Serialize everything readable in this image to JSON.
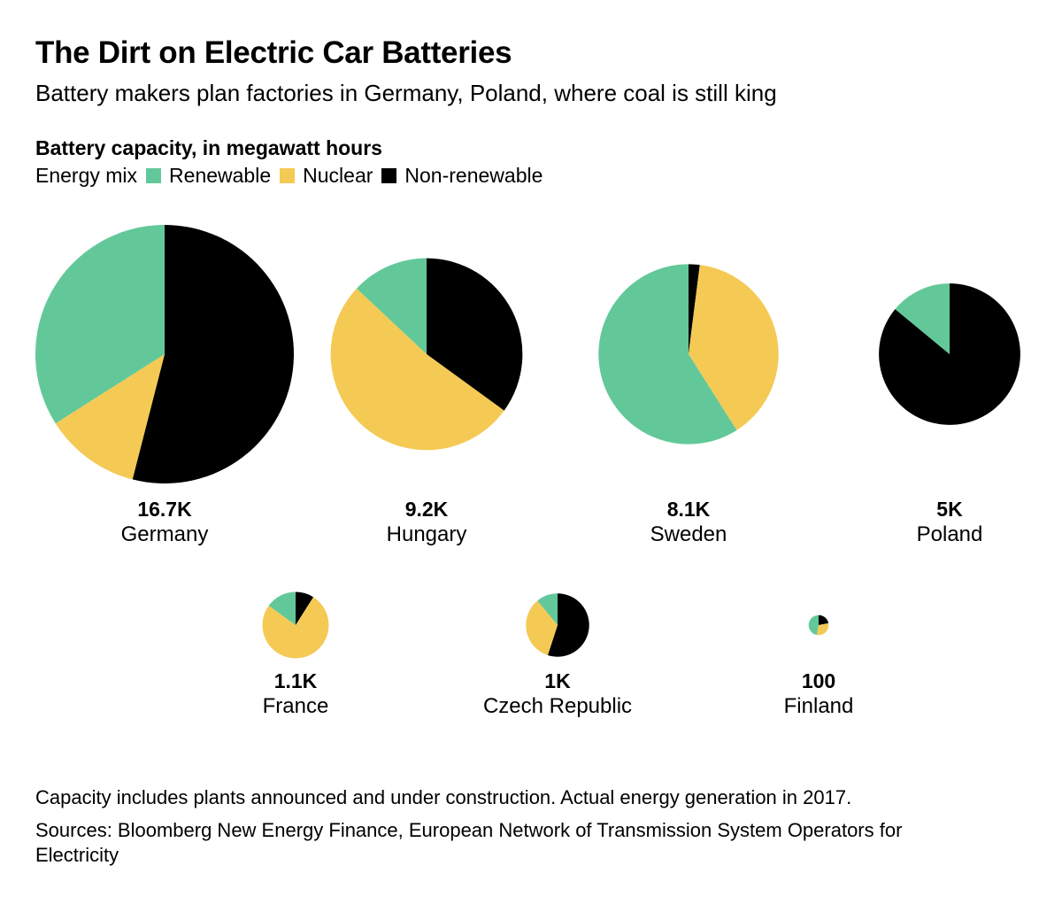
{
  "title": "The Dirt on Electric Car Batteries",
  "subtitle": "Battery makers plan factories in Germany, Poland, where coal is still king",
  "measure_label": "Battery capacity, in megawatt hours",
  "legend": {
    "label": "Energy mix",
    "items": [
      {
        "name": "Renewable",
        "color": "#63c899"
      },
      {
        "name": "Nuclear",
        "color": "#f4ca55"
      },
      {
        "name": "Non-renewable",
        "color": "#000000"
      }
    ]
  },
  "chart_data": {
    "type": "pie",
    "title": "The Dirt on Electric Car Batteries",
    "subtitle": "Battery makers plan factories in Germany, Poland, where coal is still king",
    "size_measure": "Battery capacity, in megawatt hours",
    "slice_order": [
      "Non-renewable",
      "Nuclear",
      "Renewable"
    ],
    "colors": {
      "Renewable": "#63c899",
      "Nuclear": "#f4ca55",
      "Non-renewable": "#000000"
    },
    "pies": [
      {
        "country": "Germany",
        "capacity_label": "16.7K",
        "capacity_mwh": 16700,
        "shares": {
          "Non-renewable": 54,
          "Nuclear": 12,
          "Renewable": 34
        }
      },
      {
        "country": "Hungary",
        "capacity_label": "9.2K",
        "capacity_mwh": 9200,
        "shares": {
          "Non-renewable": 35,
          "Nuclear": 52,
          "Renewable": 13
        }
      },
      {
        "country": "Sweden",
        "capacity_label": "8.1K",
        "capacity_mwh": 8100,
        "shares": {
          "Non-renewable": 2,
          "Nuclear": 39,
          "Renewable": 59
        }
      },
      {
        "country": "Poland",
        "capacity_label": "5K",
        "capacity_mwh": 5000,
        "shares": {
          "Non-renewable": 86,
          "Nuclear": 0,
          "Renewable": 14
        }
      },
      {
        "country": "France",
        "capacity_label": "1.1K",
        "capacity_mwh": 1100,
        "shares": {
          "Non-renewable": 9,
          "Nuclear": 76,
          "Renewable": 15
        }
      },
      {
        "country": "Czech Republic",
        "capacity_label": "1K",
        "capacity_mwh": 1000,
        "shares": {
          "Non-renewable": 55,
          "Nuclear": 34,
          "Renewable": 11
        }
      },
      {
        "country": "Finland",
        "capacity_label": "100",
        "capacity_mwh": 100,
        "shares": {
          "Non-renewable": 22,
          "Nuclear": 31,
          "Renewable": 47
        }
      }
    ]
  },
  "footnote": "Capacity includes plants announced and under construction. Actual energy generation in 2017.",
  "sources": "Sources: Bloomberg New Energy Finance, European Network of Transmission System Operators for Electricity"
}
